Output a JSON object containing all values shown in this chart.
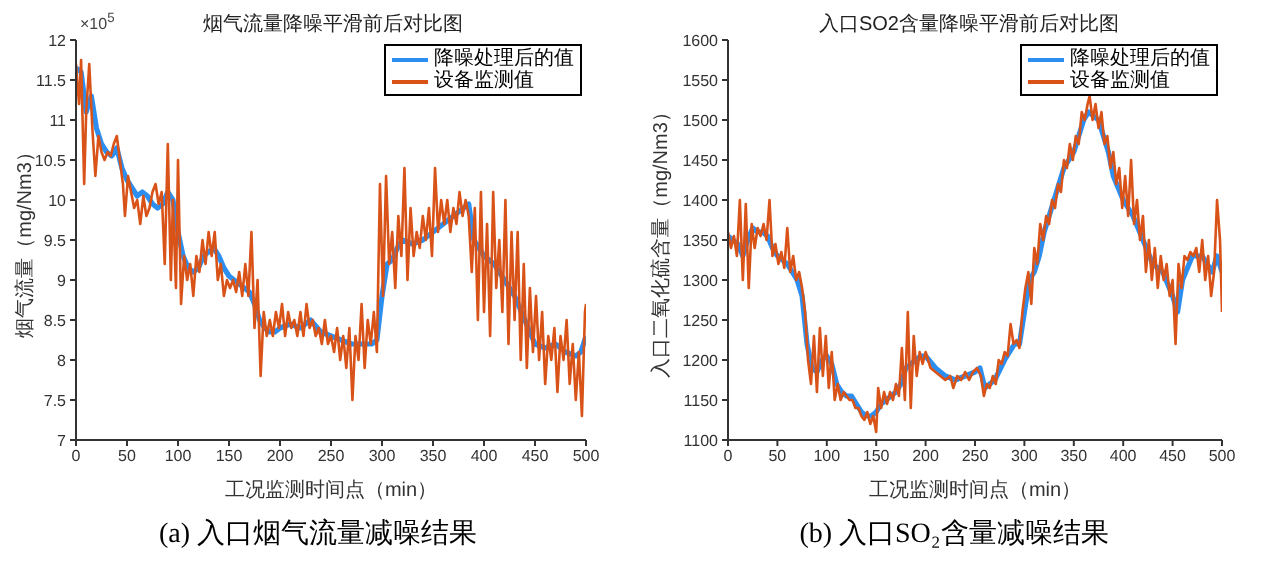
{
  "chart_data": [
    {
      "type": "line",
      "title": "烟气流量降噪平滑前后对比图",
      "xlabel": "工况监测时间点（min）",
      "ylabel": "烟气流量（mg/Nm3）",
      "annotations": [
        "×10$^{5}$",
        "(a) 入口烟气流量减噪结果"
      ],
      "xlim": [
        0,
        500
      ],
      "xticks": [
        0,
        50,
        100,
        150,
        200,
        250,
        300,
        350,
        400,
        450,
        500
      ],
      "ylim": [
        7,
        12
      ],
      "yticks": [
        7,
        7.5,
        8,
        8.5,
        9,
        9.5,
        10,
        10.5,
        11,
        11.5,
        12
      ],
      "legend": "top right",
      "series": [
        {
          "name": "降噪处理后的值",
          "color": "#2b8ef0",
          "x": [
            0,
            5,
            10,
            15,
            20,
            25,
            30,
            35,
            40,
            45,
            50,
            55,
            60,
            65,
            70,
            75,
            80,
            85,
            90,
            95,
            100,
            105,
            110,
            115,
            120,
            125,
            130,
            135,
            140,
            145,
            150,
            155,
            160,
            165,
            170,
            175,
            180,
            185,
            190,
            195,
            200,
            210,
            220,
            230,
            240,
            250,
            260,
            270,
            280,
            290,
            295,
            300,
            305,
            310,
            315,
            320,
            330,
            340,
            350,
            360,
            370,
            380,
            385,
            390,
            400,
            410,
            420,
            430,
            440,
            450,
            460,
            470,
            480,
            490,
            495,
            500
          ],
          "values": [
            11.65,
            11.6,
            11.1,
            11.3,
            10.9,
            10.7,
            10.6,
            10.55,
            10.65,
            10.4,
            10.25,
            10.15,
            10.05,
            10.1,
            10.05,
            9.95,
            9.9,
            9.95,
            10.1,
            10.0,
            9.6,
            9.3,
            9.15,
            9.1,
            9.15,
            9.3,
            9.35,
            9.4,
            9.3,
            9.15,
            9.05,
            9.0,
            8.95,
            8.9,
            8.85,
            8.7,
            8.5,
            8.4,
            8.35,
            8.35,
            8.4,
            8.45,
            8.4,
            8.5,
            8.35,
            8.3,
            8.25,
            8.2,
            8.2,
            8.2,
            8.25,
            8.8,
            9.2,
            9.25,
            9.4,
            9.5,
            9.45,
            9.5,
            9.6,
            9.7,
            9.8,
            9.9,
            9.95,
            9.5,
            9.3,
            9.2,
            9.0,
            8.8,
            8.5,
            8.2,
            8.15,
            8.2,
            8.1,
            8.05,
            8.1,
            8.3
          ]
        },
        {
          "name": "设备监测值",
          "color": "#d95319",
          "x": [
            0,
            3,
            5,
            8,
            10,
            13,
            16,
            19,
            22,
            25,
            28,
            31,
            34,
            37,
            40,
            43,
            46,
            48,
            51,
            54,
            57,
            60,
            63,
            66,
            69,
            72,
            75,
            78,
            81,
            84,
            87,
            90,
            93,
            95,
            98,
            100,
            103,
            106,
            109,
            112,
            115,
            118,
            121,
            124,
            127,
            130,
            133,
            136,
            139,
            142,
            145,
            148,
            151,
            154,
            157,
            160,
            163,
            166,
            169,
            172,
            175,
            178,
            181,
            184,
            187,
            190,
            193,
            196,
            199,
            202,
            205,
            208,
            211,
            214,
            217,
            220,
            223,
            226,
            229,
            232,
            235,
            238,
            241,
            244,
            247,
            250,
            253,
            256,
            259,
            262,
            265,
            268,
            271,
            274,
            277,
            280,
            283,
            286,
            289,
            292,
            295,
            298,
            301,
            304,
            307,
            310,
            313,
            316,
            319,
            322,
            325,
            328,
            331,
            334,
            337,
            340,
            343,
            346,
            349,
            352,
            355,
            358,
            361,
            364,
            367,
            370,
            373,
            376,
            379,
            382,
            385,
            388,
            391,
            394,
            397,
            400,
            403,
            406,
            409,
            412,
            415,
            418,
            421,
            424,
            427,
            430,
            433,
            436,
            439,
            442,
            445,
            448,
            451,
            454,
            457,
            460,
            463,
            466,
            469,
            472,
            475,
            478,
            481,
            484,
            487,
            490,
            493,
            496,
            499,
            500
          ],
          "values": [
            11.7,
            11.2,
            11.75,
            10.2,
            11.1,
            11.7,
            10.9,
            10.3,
            10.8,
            10.6,
            10.5,
            10.6,
            10.55,
            10.7,
            10.8,
            10.5,
            10.2,
            9.8,
            10.3,
            10.1,
            9.9,
            10.0,
            9.7,
            10.05,
            9.8,
            9.9,
            10.1,
            10.2,
            9.95,
            10.1,
            9.2,
            10.7,
            9.0,
            10.0,
            8.9,
            10.5,
            8.7,
            9.3,
            9.0,
            9.2,
            8.8,
            9.3,
            9.1,
            9.5,
            9.2,
            9.6,
            9.3,
            9.6,
            9.0,
            9.2,
            8.8,
            9.0,
            8.9,
            9.0,
            8.85,
            9.1,
            8.8,
            9.2,
            8.8,
            9.6,
            8.4,
            9.0,
            7.8,
            8.6,
            8.3,
            8.5,
            8.3,
            8.6,
            8.4,
            8.7,
            8.3,
            8.6,
            8.4,
            8.5,
            8.3,
            8.6,
            8.3,
            8.7,
            8.4,
            8.5,
            8.3,
            8.4,
            8.2,
            8.5,
            8.2,
            8.3,
            8.1,
            8.4,
            8.0,
            8.3,
            7.9,
            8.4,
            7.5,
            8.3,
            8.0,
            8.7,
            7.9,
            8.5,
            8.2,
            8.6,
            8.1,
            10.2,
            8.8,
            10.3,
            9.2,
            9.6,
            8.9,
            9.8,
            9.3,
            10.4,
            9.0,
            9.9,
            9.3,
            9.6,
            9.4,
            9.8,
            9.5,
            9.9,
            9.3,
            10.4,
            9.6,
            10.0,
            9.7,
            10.0,
            9.6,
            9.9,
            9.7,
            10.1,
            9.8,
            10.0,
            9.8,
            9.1,
            9.9,
            8.5,
            10.1,
            8.6,
            9.7,
            8.3,
            10.1,
            8.9,
            9.5,
            8.6,
            10.0,
            8.2,
            9.6,
            8.5,
            9.6,
            8.0,
            9.2,
            7.9,
            8.9,
            8.1,
            8.8,
            8.0,
            8.6,
            7.7,
            8.3,
            8.0,
            8.4,
            7.6,
            8.3,
            8.0,
            8.5,
            7.7,
            8.2,
            7.5,
            8.1,
            7.3,
            8.6,
            8.7
          ]
        }
      ]
    },
    {
      "type": "line",
      "title": "入口SO2含量降噪平滑前后对比图",
      "xlabel": "工况监测时间点（min）",
      "ylabel": "入口二氧化硫含量（mg/Nm3）",
      "annotations": [
        "(b) 入口SO₂含量减噪结果"
      ],
      "xlim": [
        0,
        500
      ],
      "xticks": [
        0,
        50,
        100,
        150,
        200,
        250,
        300,
        350,
        400,
        450,
        500
      ],
      "ylim": [
        1100,
        1600
      ],
      "yticks": [
        1100,
        1150,
        1200,
        1250,
        1300,
        1350,
        1400,
        1450,
        1500,
        1550,
        1600
      ],
      "legend": "top right",
      "series": [
        {
          "name": "降噪处理后的值",
          "color": "#2b8ef0",
          "x": [
            0,
            5,
            10,
            15,
            20,
            25,
            30,
            35,
            40,
            45,
            50,
            55,
            60,
            65,
            70,
            75,
            80,
            85,
            90,
            95,
            100,
            105,
            110,
            115,
            120,
            125,
            130,
            135,
            140,
            145,
            150,
            155,
            160,
            165,
            170,
            175,
            180,
            185,
            190,
            195,
            200,
            210,
            220,
            230,
            240,
            250,
            255,
            260,
            265,
            270,
            280,
            290,
            295,
            300,
            305,
            310,
            315,
            320,
            330,
            340,
            345,
            350,
            355,
            360,
            365,
            370,
            375,
            380,
            385,
            390,
            400,
            410,
            420,
            430,
            440,
            450,
            455,
            460,
            470,
            480,
            490,
            495,
            500
          ],
          "values": [
            1355,
            1350,
            1345,
            1330,
            1350,
            1365,
            1360,
            1360,
            1355,
            1340,
            1330,
            1325,
            1320,
            1310,
            1300,
            1280,
            1220,
            1190,
            1185,
            1200,
            1205,
            1195,
            1170,
            1160,
            1155,
            1155,
            1145,
            1135,
            1130,
            1130,
            1135,
            1145,
            1150,
            1155,
            1160,
            1170,
            1190,
            1195,
            1200,
            1205,
            1205,
            1190,
            1180,
            1175,
            1180,
            1185,
            1190,
            1165,
            1170,
            1175,
            1200,
            1220,
            1220,
            1260,
            1300,
            1310,
            1330,
            1360,
            1400,
            1440,
            1450,
            1460,
            1480,
            1500,
            1510,
            1505,
            1500,
            1480,
            1460,
            1430,
            1400,
            1380,
            1350,
            1320,
            1310,
            1280,
            1260,
            1300,
            1330,
            1330,
            1310,
            1330,
            1310
          ]
        },
        {
          "name": "设备监测值",
          "color": "#d95319",
          "x": [
            0,
            3,
            6,
            9,
            12,
            15,
            18,
            21,
            24,
            27,
            30,
            33,
            36,
            39,
            42,
            45,
            48,
            51,
            54,
            57,
            60,
            63,
            66,
            69,
            72,
            75,
            78,
            81,
            84,
            87,
            90,
            93,
            96,
            99,
            102,
            105,
            108,
            111,
            114,
            117,
            120,
            123,
            126,
            129,
            132,
            135,
            138,
            141,
            144,
            147,
            150,
            152,
            155,
            158,
            161,
            164,
            167,
            170,
            173,
            176,
            179,
            182,
            185,
            188,
            191,
            194,
            197,
            200,
            205,
            210,
            215,
            220,
            225,
            228,
            232,
            236,
            240,
            244,
            248,
            252,
            256,
            259,
            262,
            265,
            268,
            271,
            274,
            277,
            280,
            283,
            286,
            289,
            292,
            295,
            298,
            301,
            304,
            307,
            310,
            313,
            316,
            319,
            322,
            325,
            328,
            331,
            334,
            337,
            340,
            343,
            346,
            349,
            352,
            355,
            358,
            361,
            364,
            366,
            369,
            372,
            375,
            378,
            381,
            384,
            387,
            390,
            393,
            396,
            399,
            402,
            405,
            408,
            411,
            414,
            417,
            420,
            423,
            426,
            429,
            432,
            435,
            438,
            441,
            444,
            447,
            450,
            453,
            456,
            459,
            462,
            465,
            468,
            471,
            474,
            477,
            480,
            483,
            486,
            489,
            492,
            495,
            498,
            500
          ],
          "values": [
            1360,
            1340,
            1355,
            1330,
            1400,
            1300,
            1395,
            1290,
            1370,
            1340,
            1365,
            1355,
            1370,
            1350,
            1400,
            1330,
            1345,
            1320,
            1335,
            1315,
            1365,
            1310,
            1330,
            1300,
            1310,
            1290,
            1260,
            1200,
            1170,
            1230,
            1160,
            1240,
            1180,
            1230,
            1165,
            1210,
            1150,
            1170,
            1150,
            1160,
            1155,
            1150,
            1150,
            1140,
            1140,
            1130,
            1125,
            1135,
            1120,
            1130,
            1110,
            1165,
            1140,
            1160,
            1145,
            1160,
            1150,
            1170,
            1155,
            1215,
            1150,
            1260,
            1140,
            1230,
            1180,
            1210,
            1195,
            1210,
            1190,
            1185,
            1180,
            1175,
            1180,
            1165,
            1180,
            1175,
            1185,
            1175,
            1185,
            1190,
            1180,
            1155,
            1170,
            1165,
            1180,
            1170,
            1200,
            1195,
            1210,
            1205,
            1245,
            1220,
            1225,
            1215,
            1260,
            1290,
            1310,
            1270,
            1340,
            1320,
            1370,
            1350,
            1380,
            1370,
            1400,
            1390,
            1420,
            1410,
            1450,
            1440,
            1470,
            1450,
            1480,
            1470,
            1510,
            1500,
            1520,
            1530,
            1500,
            1520,
            1490,
            1510,
            1470,
            1480,
            1440,
            1460,
            1420,
            1440,
            1390,
            1430,
            1380,
            1450,
            1370,
            1400,
            1350,
            1380,
            1310,
            1350,
            1300,
            1340,
            1290,
            1330,
            1300,
            1320,
            1280,
            1300,
            1220,
            1320,
            1290,
            1330,
            1325,
            1335,
            1330,
            1340,
            1310,
            1350,
            1300,
            1330,
            1280,
            1310,
            1400,
            1350,
            1260
          ]
        }
      ]
    }
  ]
}
